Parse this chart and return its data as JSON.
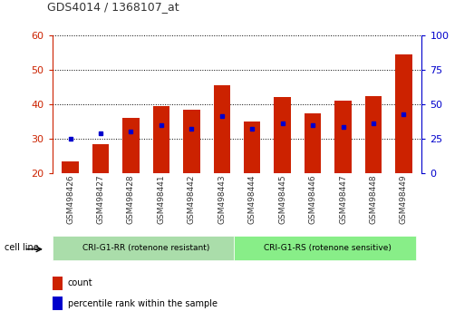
{
  "title": "GDS4014 / 1368107_at",
  "categories": [
    "GSM498426",
    "GSM498427",
    "GSM498428",
    "GSM498441",
    "GSM498442",
    "GSM498443",
    "GSM498444",
    "GSM498445",
    "GSM498446",
    "GSM498447",
    "GSM498448",
    "GSM498449"
  ],
  "count_values": [
    23.5,
    28.5,
    36.0,
    39.5,
    38.5,
    45.5,
    35.0,
    42.0,
    37.5,
    41.0,
    42.5,
    54.5
  ],
  "percentile_values": [
    30.0,
    31.5,
    32.0,
    34.0,
    33.0,
    36.5,
    33.0,
    34.5,
    34.0,
    33.5,
    34.5,
    37.0
  ],
  "ymin": 20,
  "ymax": 60,
  "y_ticks": [
    20,
    30,
    40,
    50,
    60
  ],
  "y2min": 0,
  "y2max": 100,
  "y2_ticks": [
    0,
    25,
    50,
    75,
    100
  ],
  "bar_color": "#cc2200",
  "percentile_color": "#0000cc",
  "group1_label": "CRI-G1-RR (rotenone resistant)",
  "group2_label": "CRI-G1-RS (rotenone sensitive)",
  "group1_color": "#aaddaa",
  "group2_color": "#88ee88",
  "cell_line_label": "cell line",
  "legend_count": "count",
  "legend_percentile": "percentile rank within the sample",
  "bar_width": 0.55,
  "title_color": "#333333",
  "axis_left_color": "#cc2200",
  "axis_right_color": "#0000cc"
}
